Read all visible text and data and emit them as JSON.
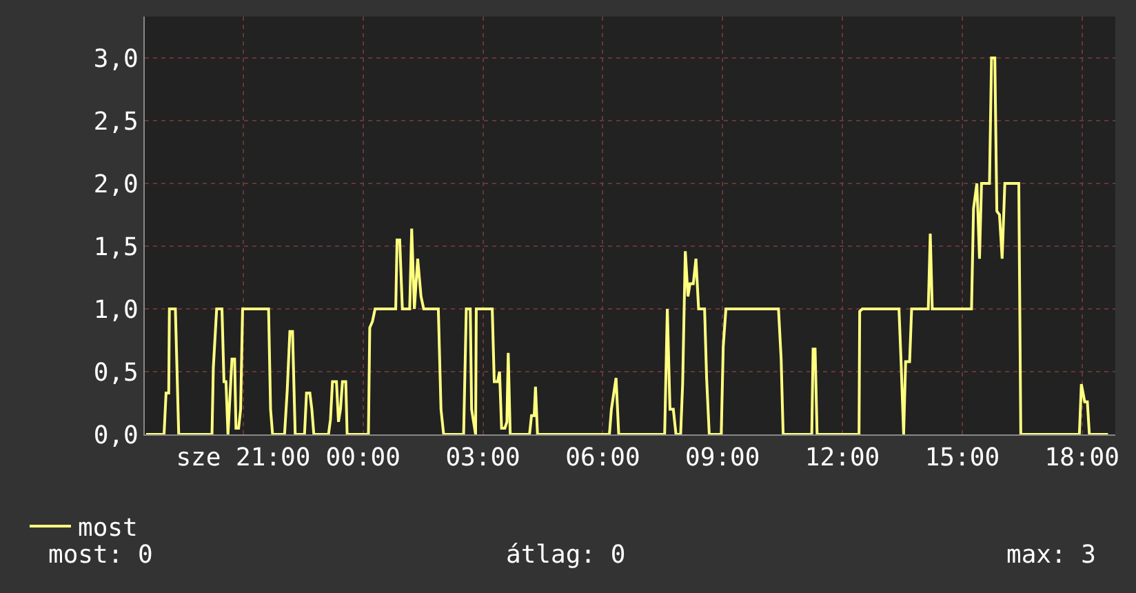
{
  "chart_data": {
    "type": "line",
    "x": [
      "--01-01T18:34",
      "--01-01T19:01",
      "--01-01T19:04",
      "--01-01T19:08",
      "--01-01T19:09",
      "--01-01T19:18",
      "--01-01T19:23",
      "--01-01T20:13",
      "--01-01T20:15",
      "--01-01T20:20",
      "--01-01T20:28",
      "--01-01T20:31",
      "--01-01T20:34",
      "--01-01T20:37",
      "--01-01T20:43",
      "--01-01T20:47",
      "--01-01T20:49",
      "--01-01T20:53",
      "--01-01T20:56",
      "--01-01T20:59",
      "--01-01T21:38",
      "--01-01T21:41",
      "--01-01T21:44",
      "--01-01T22:02",
      "--01-01T22:06",
      "--01-01T22:10",
      "--01-01T22:14",
      "--01-01T22:18",
      "--01-01T22:32",
      "--01-01T22:35",
      "--01-01T22:40",
      "--01-01T22:43",
      "--01-01T22:46",
      "--01-01T23:08",
      "--01-01T23:11",
      "--01-01T23:14",
      "--01-01T23:20",
      "--01-01T23:23",
      "--01-01T23:26",
      "--01-01T23:29",
      "--01-01T23:34",
      "--01-01T23:36",
      "--01-02T00:08",
      "--01-02T00:10",
      "--01-02T00:14",
      "--01-02T00:18",
      "--01-02T00:49",
      "--01-02T00:51",
      "--01-02T00:55",
      "--01-02T00:59",
      "--01-02T01:10",
      "--01-02T01:13",
      "--01-02T01:17",
      "--01-02T01:22",
      "--01-02T01:27",
      "--01-02T01:31",
      "--01-02T01:53",
      "--01-02T01:57",
      "--01-02T02:01",
      "--01-02T02:31",
      "--01-02T02:35",
      "--01-02T02:41",
      "--01-02T02:43",
      "--01-02T02:49",
      "--01-02T02:50",
      "--01-02T03:14",
      "--01-02T03:17",
      "--01-02T03:22",
      "--01-02T03:25",
      "--01-02T03:28",
      "--01-02T03:33",
      "--01-02T03:36",
      "--01-02T03:38",
      "--01-02T03:41",
      "--01-02T04:10",
      "--01-02T04:13",
      "--01-02T04:17",
      "--01-02T04:19",
      "--01-02T04:22",
      "--01-02T06:10",
      "--01-02T06:13",
      "--01-02T06:20",
      "--01-02T06:24",
      "--01-02T07:33",
      "--01-02T07:37",
      "--01-02T07:41",
      "--01-02T07:46",
      "--01-02T07:50",
      "--01-02T07:57",
      "--01-02T08:00",
      "--01-02T08:04",
      "--01-02T08:08",
      "--01-02T08:11",
      "--01-02T08:16",
      "--01-02T08:20",
      "--01-02T08:24",
      "--01-02T08:33",
      "--01-02T08:36",
      "--01-02T08:40",
      "--01-02T08:58",
      "--01-02T09:01",
      "--01-02T09:05",
      "--01-02T10:24",
      "--01-02T10:28",
      "--01-02T10:31",
      "--01-02T11:14",
      "--01-02T11:16",
      "--01-02T11:19",
      "--01-02T11:22",
      "--01-02T12:25",
      "--01-02T12:26",
      "--01-02T12:30",
      "--01-02T13:25",
      "--01-02T13:28",
      "--01-02T13:32",
      "--01-02T13:35",
      "--01-02T13:41",
      "--01-02T13:44",
      "--01-02T14:09",
      "--01-02T14:12",
      "--01-02T14:15",
      "--01-02T15:14",
      "--01-02T15:17",
      "--01-02T15:22",
      "--01-02T15:26",
      "--01-02T15:29",
      "--01-02T15:41",
      "--01-02T15:44",
      "--01-02T15:49",
      "--01-02T15:52",
      "--01-02T15:56",
      "--01-02T16:00",
      "--01-02T16:04",
      "--01-02T16:25",
      "--01-02T16:28",
      "--01-02T17:56",
      "--01-02T17:59",
      "--01-02T18:04",
      "--01-02T18:08",
      "--01-02T18:11",
      "--01-02T18:39"
    ],
    "series": [
      {
        "name": "most",
        "color": "#ffff80",
        "values": [
          0,
          0,
          0.33,
          0.33,
          1.0,
          1.0,
          0,
          0,
          0.53,
          1.0,
          1.0,
          0.42,
          0.42,
          0,
          0.6,
          0.6,
          0.05,
          0.05,
          0.2,
          1.0,
          1.0,
          0.2,
          0,
          0,
          0.35,
          0.82,
          0.82,
          0,
          0,
          0.33,
          0.33,
          0.2,
          0,
          0,
          0.12,
          0.42,
          0.42,
          0.1,
          0.2,
          0.42,
          0.42,
          0,
          0,
          0.85,
          0.9,
          1.0,
          1.0,
          1.55,
          1.55,
          1.0,
          1.0,
          1.64,
          1.0,
          1.4,
          1.1,
          1.0,
          1.0,
          0.2,
          0,
          0,
          1.0,
          1.0,
          0.2,
          0,
          1.0,
          1.0,
          0.42,
          0.42,
          0.5,
          0.05,
          0.05,
          0.1,
          0.65,
          0,
          0,
          0.15,
          0.15,
          0.38,
          0,
          0,
          0.2,
          0.45,
          0,
          0,
          1.0,
          0.2,
          0.2,
          0,
          0,
          0.4,
          1.46,
          1.1,
          1.2,
          1.2,
          1.4,
          1.0,
          1.0,
          0.45,
          0,
          0,
          0.7,
          1.0,
          1.0,
          0.6,
          0,
          0,
          0.68,
          0.68,
          0,
          0,
          0.98,
          1.0,
          1.0,
          0.6,
          0,
          0.58,
          0.58,
          1.0,
          1.0,
          1.6,
          1.0,
          1.0,
          1.8,
          2.0,
          1.4,
          2.0,
          2.0,
          3.0,
          3.0,
          1.78,
          1.75,
          1.4,
          2.0,
          2.0,
          0,
          0,
          0.4,
          0.26,
          0.26,
          0,
          0
        ]
      }
    ],
    "xlim": [
      "--01-01T18:32",
      "--01-02T18:50"
    ],
    "xticks": [
      {
        "value": "--01-01T21:00",
        "label": "sze 21:00"
      },
      {
        "value": "--01-02T00:00",
        "label": "00:00"
      },
      {
        "value": "--01-02T03:00",
        "label": "03:00"
      },
      {
        "value": "--01-02T06:00",
        "label": "06:00"
      },
      {
        "value": "--01-02T09:00",
        "label": "09:00"
      },
      {
        "value": "--01-02T12:00",
        "label": "12:00"
      },
      {
        "value": "--01-02T15:00",
        "label": "15:00"
      },
      {
        "value": "--01-02T18:00",
        "label": "18:00"
      }
    ],
    "ylim": [
      0,
      3.33
    ],
    "yticks": [
      {
        "value": 0,
        "label": "0,0"
      },
      {
        "value": 0.5,
        "label": "0,5"
      },
      {
        "value": 1,
        "label": "1,0"
      },
      {
        "value": 1.5,
        "label": "1,5"
      },
      {
        "value": 2,
        "label": "2,0"
      },
      {
        "value": 2.5,
        "label": "2,5"
      },
      {
        "value": 3,
        "label": "3,0"
      }
    ],
    "grid": true,
    "legend": "bottom left",
    "marker": "none",
    "line_style": "solid",
    "annotations": [
      "most: 0",
      "átlag: 0",
      "max: 3"
    ]
  }
}
